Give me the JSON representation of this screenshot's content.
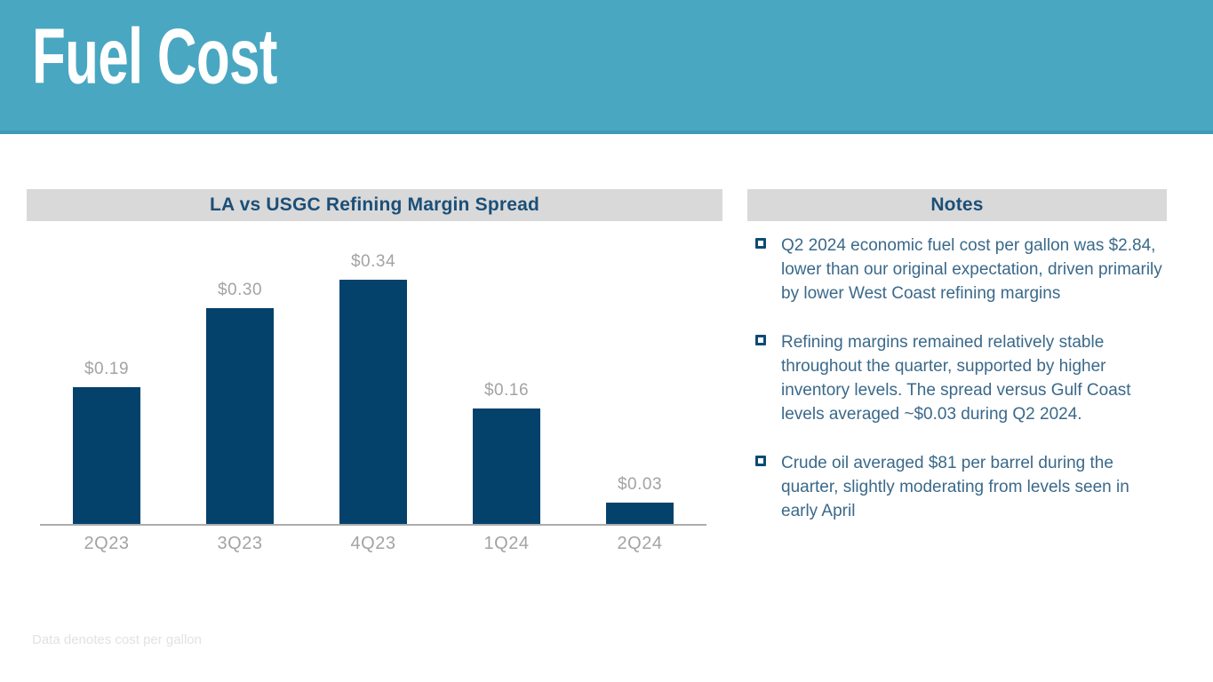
{
  "header": {
    "title": "Fuel Cost"
  },
  "chart": {
    "panel_title": "LA vs USGC Refining Margin Spread"
  },
  "chart_data": {
    "type": "bar",
    "title": "LA vs USGC Refining Margin Spread",
    "categories": [
      "2Q23",
      "3Q23",
      "4Q23",
      "1Q24",
      "2Q24"
    ],
    "values": [
      0.19,
      0.3,
      0.34,
      0.16,
      0.03
    ],
    "value_labels": [
      "$0.19",
      "$0.30",
      "$0.34",
      "$0.16",
      "$0.03"
    ],
    "xlabel": "",
    "ylabel": "",
    "ylim": [
      0,
      0.3975
    ],
    "grid": false,
    "legend": "none",
    "bar_color": "#05426B",
    "label_color": "#A3A3A3"
  },
  "notes": {
    "panel_title": "Notes",
    "items": [
      "Q2 2024 economic fuel cost per gallon was $2.84, lower than our original expectation, driven primarily by lower West Coast refining margins",
      "Refining margins remained relatively stable throughout the quarter, supported by higher inventory levels. The spread versus Gulf Coast levels averaged ~$0.03 during Q2 2024.",
      "Crude oil averaged $81 per barrel during the quarter, slightly moderating from levels seen in early April"
    ]
  },
  "footer": {
    "text": "Data denotes cost per gallon"
  },
  "colors": {
    "header_teal": "#49A7C1",
    "panel_gray": "#D9D9D9",
    "heading_navy": "#1B4F78",
    "bar_navy": "#05426B",
    "note_text_blue": "#3A698A",
    "muted_gray": "#A3A3A3"
  }
}
